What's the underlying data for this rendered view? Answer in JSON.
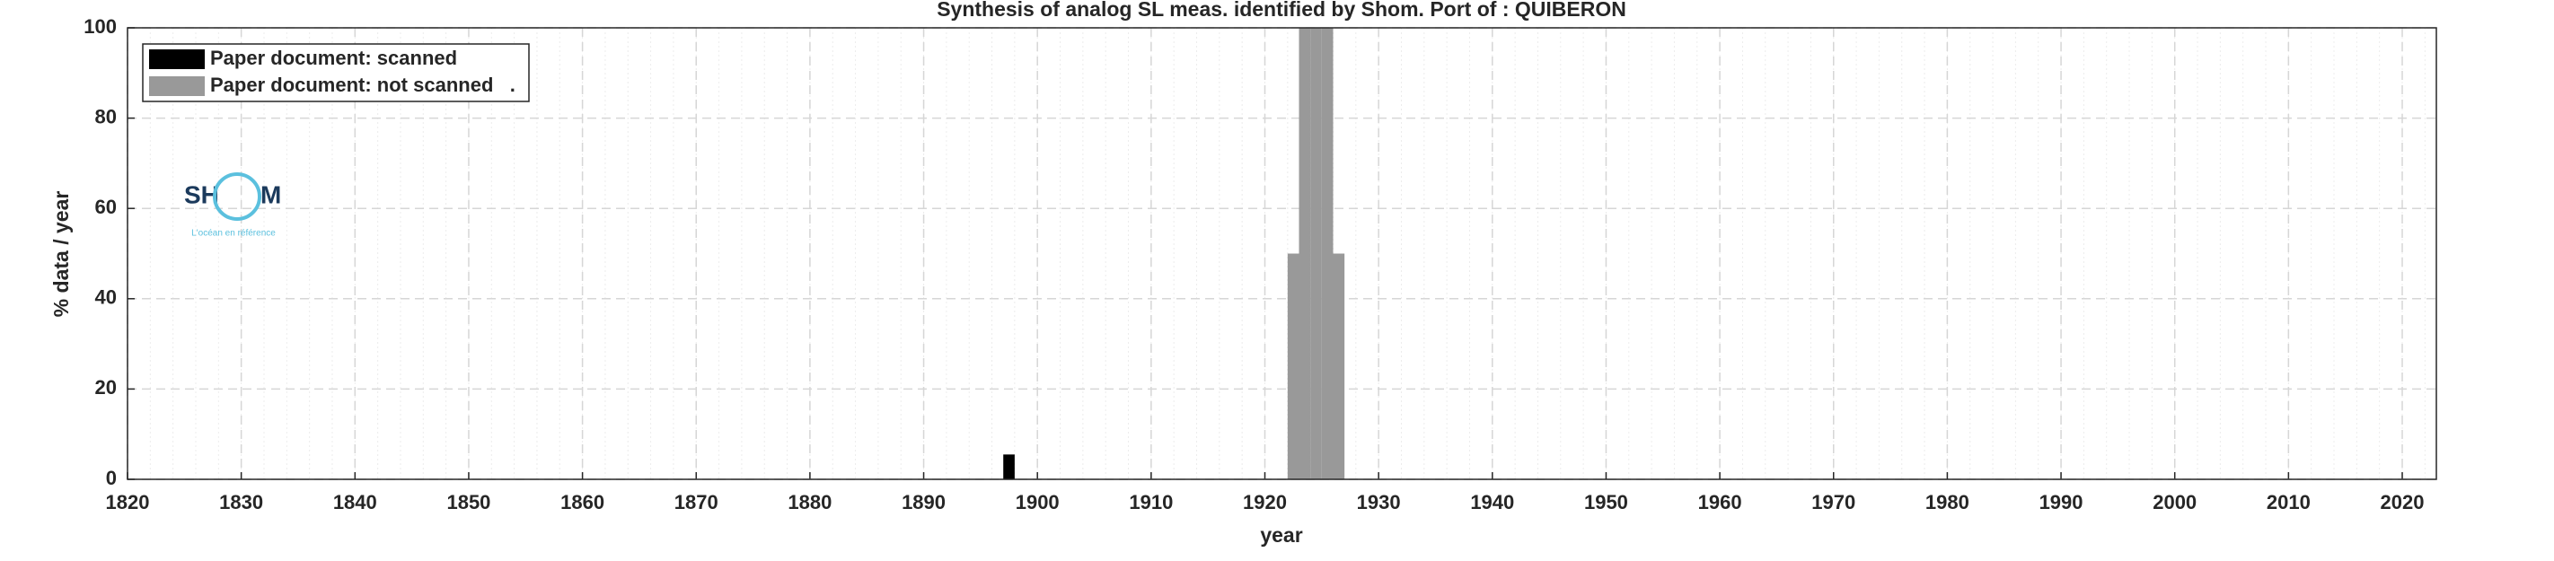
{
  "chart_data": {
    "type": "bar",
    "title": "Synthesis of analog SL meas. identified by Shom. Port of : QUIBERON",
    "x_label": "year",
    "y_label": "% data / year",
    "series": [
      {
        "name": "Paper document: scanned",
        "color": "#000000",
        "x": [
          1897
        ],
        "values": [
          5.5
        ]
      },
      {
        "name": "Paper document: not scanned   .",
        "color": "#999999",
        "x": [
          1922,
          1923,
          1924,
          1925,
          1926
        ],
        "values": [
          50,
          100,
          100,
          100,
          50
        ]
      }
    ],
    "xlim": [
      1820,
      2023
    ],
    "xticks": [
      1820,
      1830,
      1840,
      1850,
      1860,
      1870,
      1880,
      1890,
      1900,
      1910,
      1920,
      1930,
      1940,
      1950,
      1960,
      1970,
      1980,
      1990,
      2000,
      2010,
      2020
    ],
    "ylim": [
      0,
      100
    ],
    "yticks": [
      0,
      20,
      40,
      60,
      80,
      100
    ],
    "grid": true,
    "minor_grid": true,
    "legend": "upper left",
    "logo": {
      "left": "SH",
      "right": "M",
      "tagline": "L'océan en référence"
    }
  }
}
